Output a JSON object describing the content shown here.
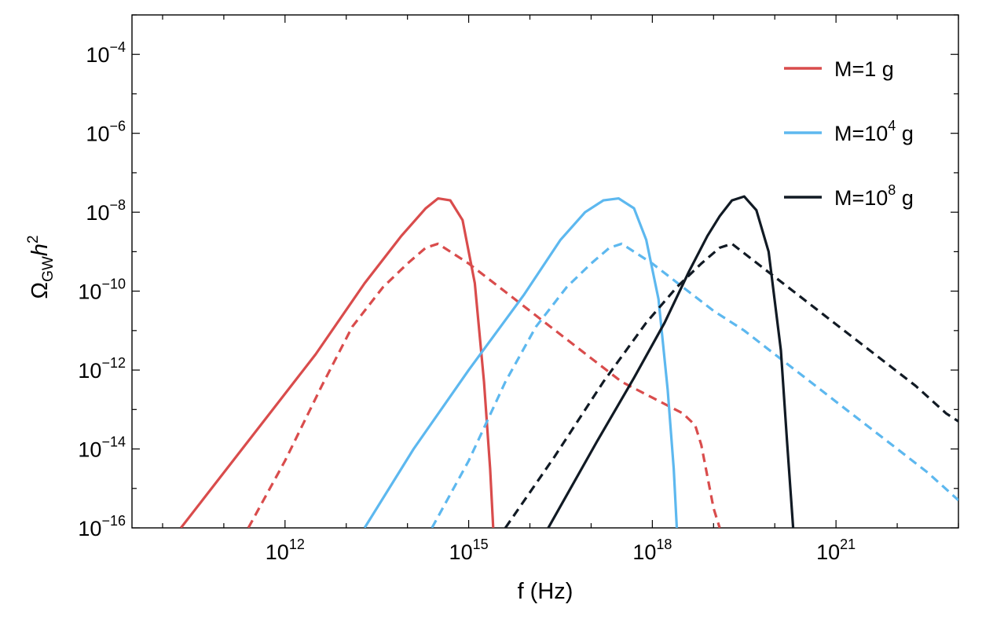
{
  "chart_data": {
    "type": "line",
    "title": "",
    "xlabel": "f (Hz)",
    "ylabel": "ΩGWh2",
    "ylabel_parts": {
      "symbol": "Ω",
      "sub": "GW",
      "var": "h",
      "sup": "2"
    },
    "x_scale": "log",
    "y_scale": "log",
    "xlim_log10": [
      9.5,
      23.0
    ],
    "ylim_log10": [
      -16,
      -3
    ],
    "x_ticks": [
      {
        "log10": 12,
        "base": "10",
        "exp": "12"
      },
      {
        "log10": 15,
        "base": "10",
        "exp": "15"
      },
      {
        "log10": 18,
        "base": "10",
        "exp": "18"
      },
      {
        "log10": 21,
        "base": "10",
        "exp": "21"
      }
    ],
    "y_ticks": [
      {
        "log10": -4,
        "base": "10",
        "exp": "−4"
      },
      {
        "log10": -6,
        "base": "10",
        "exp": "−6"
      },
      {
        "log10": -8,
        "base": "10",
        "exp": "−8"
      },
      {
        "log10": -10,
        "base": "10",
        "exp": "−10"
      },
      {
        "log10": -12,
        "base": "10",
        "exp": "−12"
      },
      {
        "log10": -14,
        "base": "10",
        "exp": "−14"
      },
      {
        "log10": -16,
        "base": "10",
        "exp": "−16"
      }
    ],
    "legend": {
      "position": "top-right",
      "entries": [
        {
          "base": "M=1 g",
          "exp": "",
          "tail": "",
          "color": "#d94c4c"
        },
        {
          "base": "M=10",
          "exp": "4",
          "tail": " g",
          "color": "#5db8ef"
        },
        {
          "base": "M=10",
          "exp": "8",
          "tail": " g",
          "color": "#111a24"
        }
      ]
    },
    "series": [
      {
        "name": "M=1 g (solid)",
        "color": "#d94c4c",
        "style": "solid",
        "x_log10": [
          10.3,
          11.5,
          12.5,
          13.3,
          13.9,
          14.3,
          14.5,
          14.7,
          14.9,
          15.1,
          15.25,
          15.35,
          15.4
        ],
        "y_log10": [
          -16.0,
          -13.6,
          -11.6,
          -9.8,
          -8.6,
          -7.9,
          -7.65,
          -7.7,
          -8.2,
          -9.8,
          -12.3,
          -14.5,
          -16.0
        ]
      },
      {
        "name": "M=1 g (dashed)",
        "color": "#d94c4c",
        "style": "dashed",
        "x_log10": [
          11.4,
          12.0,
          12.6,
          13.1,
          13.6,
          14.0,
          14.3,
          14.5,
          15.0,
          15.5,
          16.0,
          16.5,
          17.0,
          17.5,
          18.0,
          18.5,
          18.7,
          18.8,
          18.9,
          19.0,
          19.1
        ],
        "y_log10": [
          -16.0,
          -14.3,
          -12.4,
          -10.9,
          -9.9,
          -9.3,
          -8.9,
          -8.8,
          -9.3,
          -9.9,
          -10.5,
          -11.1,
          -11.7,
          -12.3,
          -12.7,
          -13.1,
          -13.4,
          -13.9,
          -14.7,
          -15.5,
          -16.0
        ]
      },
      {
        "name": "M=10^4 g (solid)",
        "color": "#5db8ef",
        "style": "solid",
        "x_log10": [
          13.3,
          14.1,
          15.0,
          15.9,
          16.5,
          16.9,
          17.2,
          17.45,
          17.7,
          17.9,
          18.1,
          18.25,
          18.35,
          18.4
        ],
        "y_log10": [
          -16.0,
          -14.0,
          -12.0,
          -10.1,
          -8.7,
          -8.0,
          -7.7,
          -7.65,
          -7.9,
          -8.7,
          -10.2,
          -12.5,
          -14.5,
          -16.0
        ]
      },
      {
        "name": "M=10^4 g (dashed)",
        "color": "#5db8ef",
        "style": "dashed",
        "x_log10": [
          14.4,
          15.0,
          15.6,
          16.1,
          16.6,
          17.0,
          17.3,
          17.5,
          18.0,
          18.5,
          19.0,
          19.5,
          20.0,
          20.5,
          21.0,
          21.5,
          22.0,
          22.5,
          23.0
        ],
        "y_log10": [
          -16.0,
          -14.3,
          -12.3,
          -10.9,
          -9.9,
          -9.3,
          -8.9,
          -8.8,
          -9.3,
          -9.9,
          -10.5,
          -11.0,
          -11.6,
          -12.2,
          -12.8,
          -13.4,
          -14.0,
          -14.6,
          -15.3
        ]
      },
      {
        "name": "M=10^8 g (solid)",
        "color": "#111a24",
        "style": "solid",
        "x_log10": [
          16.3,
          17.1,
          17.7,
          18.2,
          18.6,
          18.9,
          19.1,
          19.3,
          19.5,
          19.7,
          19.9,
          20.1,
          20.2,
          20.3
        ],
        "y_log10": [
          -16.0,
          -13.8,
          -12.2,
          -10.8,
          -9.5,
          -8.6,
          -8.1,
          -7.7,
          -7.6,
          -7.95,
          -9.0,
          -11.5,
          -13.8,
          -16.0
        ]
      },
      {
        "name": "M=10^8 g (dashed)",
        "color": "#111a24",
        "style": "dashed",
        "x_log10": [
          15.6,
          16.4,
          17.2,
          17.9,
          18.4,
          18.8,
          19.1,
          19.3,
          19.8,
          20.3,
          20.8,
          21.3,
          21.8,
          22.3,
          22.8,
          23.0
        ],
        "y_log10": [
          -16.0,
          -14.2,
          -12.3,
          -10.8,
          -9.9,
          -9.3,
          -8.9,
          -8.8,
          -9.4,
          -10.0,
          -10.6,
          -11.2,
          -11.8,
          -12.4,
          -13.1,
          -13.3
        ]
      }
    ]
  }
}
